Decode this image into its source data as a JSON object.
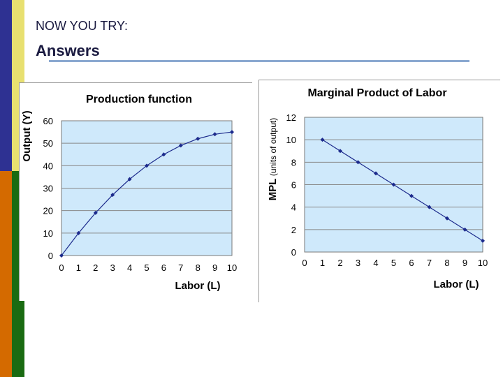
{
  "slide": {
    "heading": "NOW YOU TRY:",
    "subheading": "Answers"
  },
  "chart_data": [
    {
      "type": "line",
      "title": "Production function",
      "xlabel": "Labor (L)",
      "ylabel": "Output (Y)",
      "x": [
        0,
        1,
        2,
        3,
        4,
        5,
        6,
        7,
        8,
        9,
        10
      ],
      "series": [
        {
          "name": "Output (Y)",
          "values": [
            0,
            10,
            19,
            27,
            34,
            40,
            45,
            49,
            52,
            54,
            55
          ]
        }
      ],
      "xlim": [
        0,
        10
      ],
      "ylim": [
        0,
        60
      ],
      "xticks": [
        "0",
        "1",
        "2",
        "3",
        "4",
        "5",
        "6",
        "7",
        "8",
        "9",
        "10"
      ],
      "yticks": [
        "0",
        "10",
        "20",
        "30",
        "40",
        "50",
        "60"
      ],
      "grid": true,
      "colors": {
        "plot_bg": "#cfe9fb",
        "line": "#1c2a8c",
        "grid": "#888888"
      }
    },
    {
      "type": "line",
      "title": "Marginal Product of Labor",
      "xlabel": "Labor (L)",
      "ylabel": "MPL",
      "ylabel_units": "(units of output)",
      "x": [
        1,
        2,
        3,
        4,
        5,
        6,
        7,
        8,
        9,
        10
      ],
      "series": [
        {
          "name": "MPL",
          "values": [
            10,
            9,
            8,
            7,
            6,
            5,
            4,
            3,
            2,
            1
          ]
        }
      ],
      "xlim": [
        0,
        10
      ],
      "ylim": [
        0,
        12
      ],
      "xticks": [
        "0",
        "1",
        "2",
        "3",
        "4",
        "5",
        "6",
        "7",
        "8",
        "9",
        "10"
      ],
      "yticks": [
        "0",
        "2",
        "4",
        "6",
        "8",
        "10",
        "12"
      ],
      "grid": true,
      "colors": {
        "plot_bg": "#cfe9fb",
        "line": "#1c2a8c",
        "grid": "#888888"
      }
    }
  ]
}
